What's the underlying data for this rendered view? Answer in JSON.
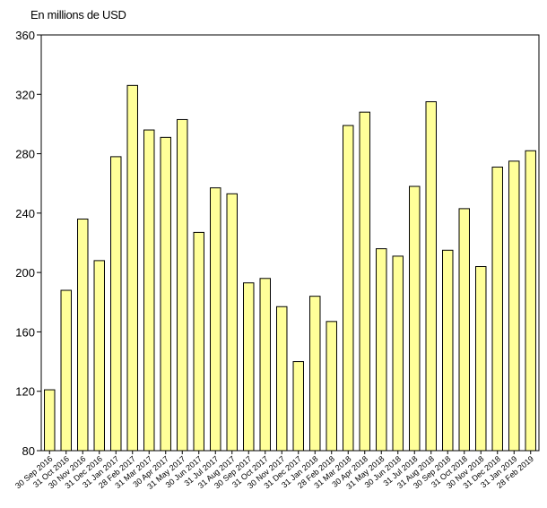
{
  "chart_data": {
    "type": "bar",
    "unit_label": "En millions de USD",
    "categories": [
      "30 Sep 2016",
      "31 Oct 2016",
      "30 Nov 2016",
      "31 Dec 2016",
      "31 Jan 2017",
      "28 Feb 2017",
      "31 Mar 2017",
      "30 Apr 2017",
      "31 May 2017",
      "30 Jun 2017",
      "31 Jul 2017",
      "31 Aug 2017",
      "30 Sep 2017",
      "31 Oct 2017",
      "30 Nov 2017",
      "31 Dec 2017",
      "31 Jan 2018",
      "28 Feb 2018",
      "31 Mar 2018",
      "30 Apr 2018",
      "31 May 2018",
      "30 Jun 2018",
      "31 Jul 2018",
      "31 Aug 2018",
      "30 Sep 2018",
      "31 Oct 2018",
      "30 Nov 2018",
      "31 Dec 2018",
      "31 Jan 2019",
      "28 Feb 2019"
    ],
    "values": [
      121,
      188,
      236,
      208,
      278,
      326,
      296,
      291,
      303,
      227,
      257,
      253,
      193,
      196,
      177,
      140,
      184,
      167,
      299,
      308,
      216,
      211,
      258,
      315,
      215,
      243,
      204,
      271,
      275,
      282
    ],
    "ylim": [
      80,
      360
    ],
    "yticks": [
      80,
      120,
      160,
      200,
      240,
      280,
      320,
      360
    ],
    "grid": false,
    "bar_color": "#ffff99",
    "bar_stroke": "#000000"
  }
}
